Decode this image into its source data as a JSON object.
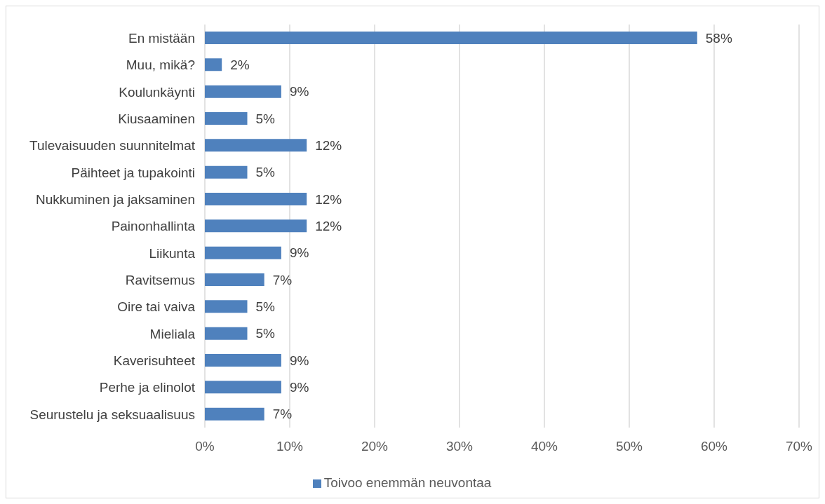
{
  "chart_data": {
    "type": "bar",
    "orientation": "horizontal",
    "categories": [
      "En mistään",
      "Muu, mikä?",
      "Koulunkäynti",
      "Kiusaaminen",
      "Tulevaisuuden suunnitelmat",
      "Päihteet ja tupakointi",
      "Nukkuminen ja jaksaminen",
      "Painonhallinta",
      "Liikunta",
      "Ravitsemus",
      "Oire tai vaiva",
      "Mieliala",
      "Kaverisuhteet",
      "Perhe ja elinolot",
      "Seurustelu ja seksuaalisuus"
    ],
    "series": [
      {
        "name": "Toivoo enemmän neuvontaa",
        "color": "#4f81bd",
        "values": [
          58,
          2,
          9,
          5,
          12,
          5,
          12,
          12,
          9,
          7,
          5,
          5,
          9,
          9,
          7
        ],
        "value_labels": [
          "58%",
          "2%",
          "9%",
          "5%",
          "12%",
          "5%",
          "12%",
          "12%",
          "9%",
          "7%",
          "5%",
          "5%",
          "9%",
          "9%",
          "7%"
        ]
      }
    ],
    "xlim": [
      0,
      70
    ],
    "xticks": [
      {
        "value": 0,
        "label": "0%"
      },
      {
        "value": 10,
        "label": "10%"
      },
      {
        "value": 20,
        "label": "20%"
      },
      {
        "value": 30,
        "label": "30%"
      },
      {
        "value": 40,
        "label": "40%"
      },
      {
        "value": 50,
        "label": "50%"
      },
      {
        "value": 60,
        "label": "60%"
      },
      {
        "value": 70,
        "label": "70%"
      }
    ],
    "grid": "x",
    "legend": "bottom"
  }
}
